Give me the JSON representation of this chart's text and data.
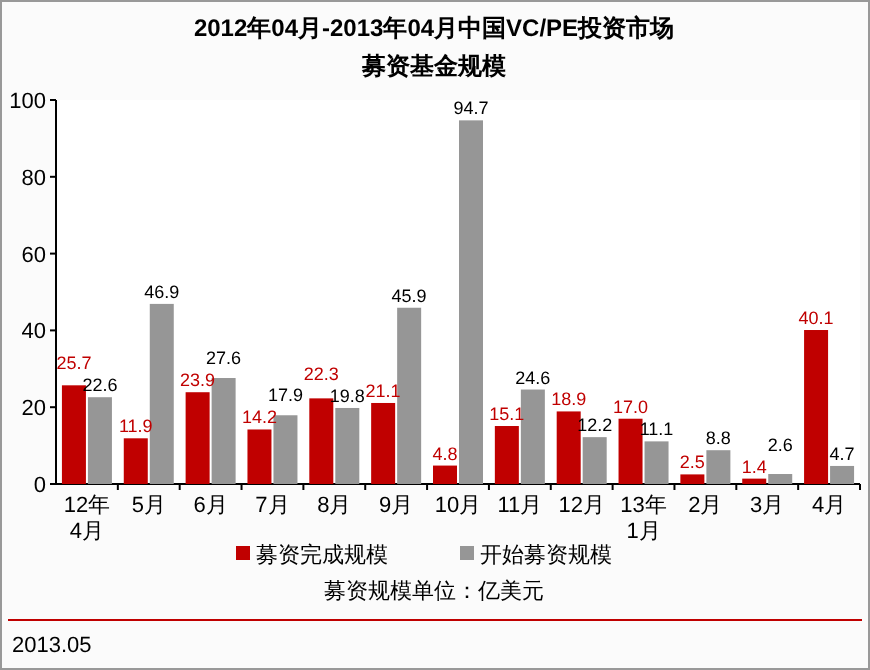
{
  "chart_data": {
    "type": "bar",
    "title": "2012年04月-2013年04月中国VC/PE投资市场",
    "subtitle": "募资基金规模",
    "categories": [
      "12年 4月",
      "5月",
      "6月",
      "7月",
      "8月",
      "9月",
      "10月",
      "11月",
      "12月",
      "13年 1月",
      "2月",
      "3月",
      "4月"
    ],
    "series": [
      {
        "name": "募资完成规模",
        "color": "#c00000",
        "values": [
          25.7,
          11.9,
          23.9,
          14.2,
          22.3,
          21.1,
          4.8,
          15.1,
          18.9,
          17.0,
          2.5,
          1.4,
          40.1
        ],
        "value_labels": [
          "25.7",
          "11.9",
          "23.9",
          "14.2",
          "22.3",
          "21.1",
          "4.8",
          "15.1",
          "18.9",
          "17.0",
          "2.5",
          "1.4",
          "40.1"
        ]
      },
      {
        "name": "开始募资规模",
        "color": "#969696",
        "values": [
          22.6,
          46.9,
          27.6,
          17.9,
          19.8,
          45.9,
          94.7,
          24.6,
          12.2,
          11.1,
          8.8,
          2.6,
          4.7
        ],
        "value_labels": [
          "22.6",
          "46.9",
          "27.6",
          "17.9",
          "19.8",
          "45.9",
          "94.7",
          "24.6",
          "12.2",
          "11.1",
          "8.8",
          "2.6",
          "4.7"
        ]
      }
    ],
    "ylim": [
      0,
      100
    ],
    "yticks": [
      0,
      20,
      40,
      60,
      80,
      100
    ],
    "legend": "bottom",
    "grid": false,
    "annotations": [
      "募资规模单位：亿美元",
      "2013.05"
    ]
  }
}
